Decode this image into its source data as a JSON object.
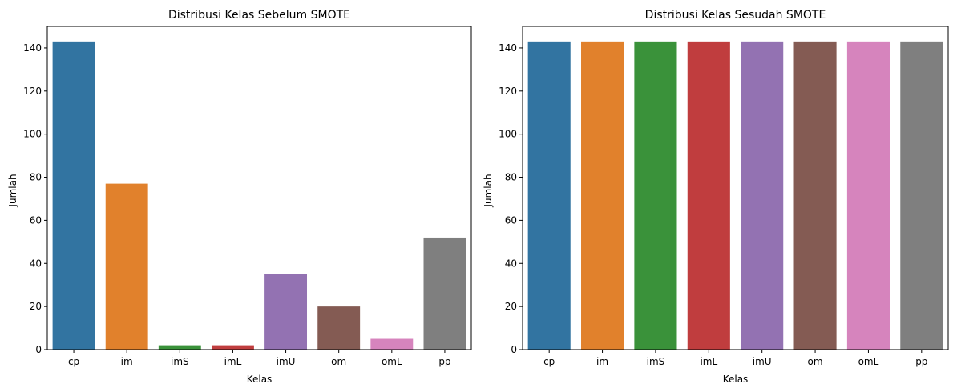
{
  "chart_data": [
    {
      "type": "bar",
      "title": "Distribusi Kelas Sebelum SMOTE",
      "xlabel": "Kelas",
      "ylabel": "Jumlah",
      "categories": [
        "cp",
        "im",
        "imS",
        "imL",
        "imU",
        "om",
        "omL",
        "pp"
      ],
      "values": [
        143,
        77,
        2,
        2,
        35,
        20,
        5,
        52
      ],
      "ylim": [
        0,
        150
      ],
      "yticks": [
        "0",
        "20",
        "40",
        "60",
        "80",
        "100",
        "120",
        "140"
      ],
      "colors": [
        "#3274a1",
        "#e1812c",
        "#3a923a",
        "#c03d3e",
        "#9372b2",
        "#845b53",
        "#d684bd",
        "#7f7f7f"
      ],
      "grid": false
    },
    {
      "type": "bar",
      "title": "Distribusi Kelas Sesudah SMOTE",
      "xlabel": "Kelas",
      "ylabel": "Jumlah",
      "categories": [
        "cp",
        "im",
        "imS",
        "imL",
        "imU",
        "om",
        "omL",
        "pp"
      ],
      "values": [
        143,
        143,
        143,
        143,
        143,
        143,
        143,
        143
      ],
      "ylim": [
        0,
        150
      ],
      "yticks": [
        "0",
        "20",
        "40",
        "60",
        "80",
        "100",
        "120",
        "140"
      ],
      "colors": [
        "#3274a1",
        "#e1812c",
        "#3a923a",
        "#c03d3e",
        "#9372b2",
        "#845b53",
        "#d684bd",
        "#7f7f7f"
      ],
      "grid": false
    }
  ]
}
